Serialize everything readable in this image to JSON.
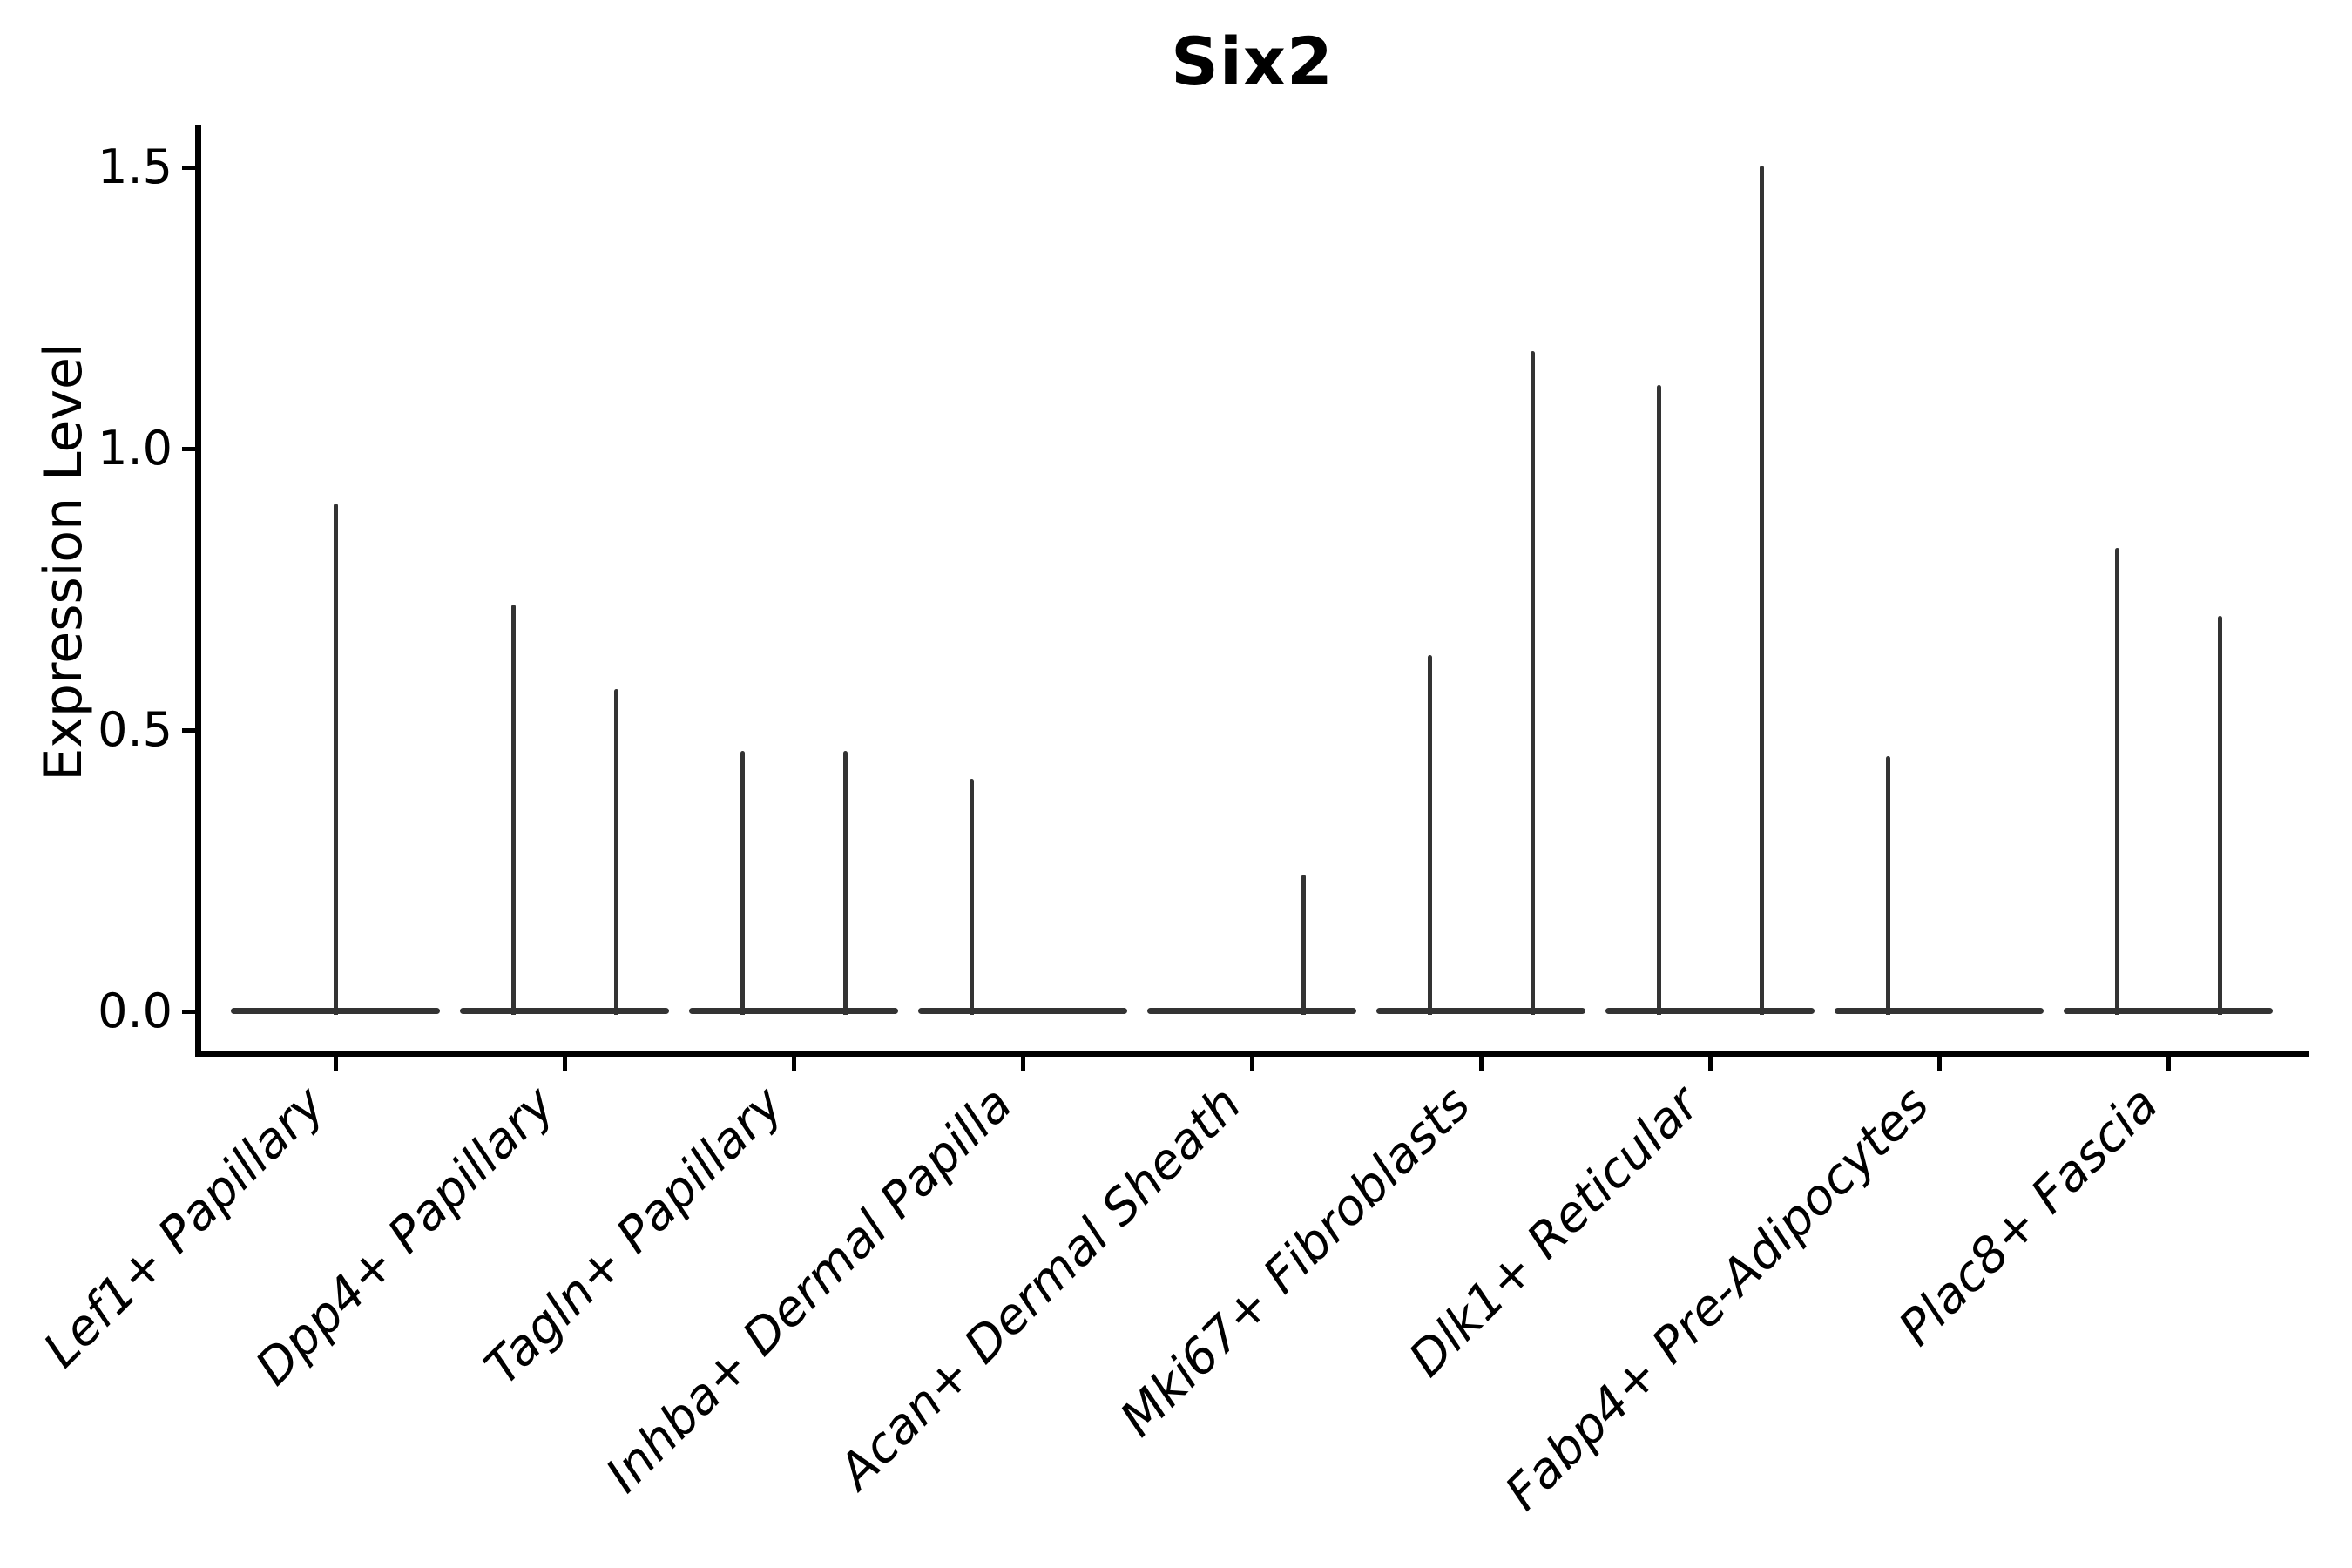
{
  "colors": {
    "violin": "#333333",
    "axis": "#000000",
    "text": "#000000",
    "background": "#ffffff"
  },
  "chart_data": {
    "type": "violin",
    "title": "Six2",
    "ylabel": "Expression Level",
    "xlabel": "",
    "ylim": [
      -0.07,
      1.57
    ],
    "grid": false,
    "legend": "none",
    "y_ticks": [
      0.0,
      0.5,
      1.0,
      1.5
    ],
    "y_tick_labels": [
      "0.0",
      "0.5",
      "1.0",
      "1.5"
    ],
    "note": "distributions concentrated at 0; each violin collapses to a flat base at 0 with a thin spike up to its maximum expression value",
    "categories": [
      {
        "label": "Lef1+ Papillary",
        "violins": [
          {
            "position": "center",
            "max_expression": 0.9
          }
        ]
      },
      {
        "label": "Dpp4+ Papillary",
        "violins": [
          {
            "position": "left",
            "max_expression": 0.72
          },
          {
            "position": "right",
            "max_expression": 0.57
          }
        ]
      },
      {
        "label": "Tagln+ Papillary",
        "violins": [
          {
            "position": "left",
            "max_expression": 0.46
          },
          {
            "position": "right",
            "max_expression": 0.46
          }
        ]
      },
      {
        "label": "Inhba+ Dermal Papilla",
        "violins": [
          {
            "position": "left",
            "max_expression": 0.41
          }
        ]
      },
      {
        "label": "Acan+ Dermal Sheath",
        "violins": [
          {
            "position": "right",
            "max_expression": 0.24
          }
        ]
      },
      {
        "label": "Mki67+ Fibroblasts",
        "violins": [
          {
            "position": "left",
            "max_expression": 0.63
          },
          {
            "position": "right",
            "max_expression": 1.17
          }
        ]
      },
      {
        "label": "Dlk1+ Reticular",
        "violins": [
          {
            "position": "left",
            "max_expression": 1.11
          },
          {
            "position": "right",
            "max_expression": 1.5
          }
        ]
      },
      {
        "label": "Fabp4+ Pre-Adipocytes",
        "violins": [
          {
            "position": "left",
            "max_expression": 0.45
          }
        ]
      },
      {
        "label": "Plac8+ Fascia",
        "violins": [
          {
            "position": "left",
            "max_expression": 0.82
          },
          {
            "position": "right",
            "max_expression": 0.7
          }
        ]
      }
    ]
  }
}
